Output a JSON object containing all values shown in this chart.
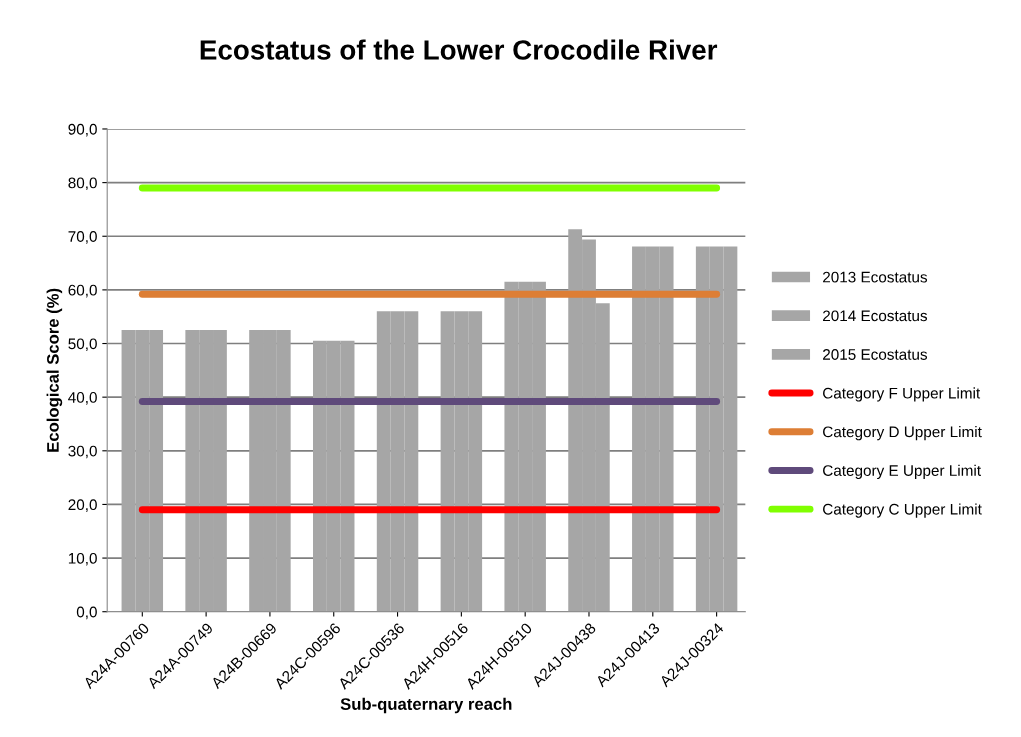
{
  "chart_data": {
    "type": "bar",
    "title": "Ecostatus of the Lower Crocodile River",
    "xlabel": "Sub-quaternary reach",
    "ylabel": "Ecological Score (%)",
    "categories": [
      "A24A-00760",
      "A24A-00749",
      "A24B-00669",
      "A24C-00596",
      "A24C-00536",
      "A24H-00516",
      "A24H-00510",
      "A24J-00438",
      "A24J-00413",
      "A24J-00324"
    ],
    "series": [
      {
        "name": "2013 Ecostatus",
        "color": "#a6a6a6",
        "values": [
          52.5,
          52.5,
          52.5,
          50.5,
          56,
          56,
          61.5,
          71.3,
          68.1,
          68.1
        ]
      },
      {
        "name": "2014 Ecostatus",
        "color": "#a6a6a6",
        "values": [
          52.5,
          52.5,
          52.5,
          50.5,
          56,
          56,
          61.5,
          69.4,
          68.1,
          68.1
        ]
      },
      {
        "name": "2015 Ecostatus",
        "color": "#a6a6a6",
        "values": [
          52.5,
          52.5,
          52.5,
          50.5,
          56,
          56,
          61.5,
          57.5,
          68.1,
          68.1
        ]
      },
      {
        "name": "Category F Upper Limit",
        "type": "line",
        "color": "#ff0000",
        "values": [
          19,
          19,
          19,
          19,
          19,
          19,
          19,
          19,
          19,
          19
        ]
      },
      {
        "name": "Category D Upper Limit",
        "type": "line",
        "color": "#dd7e35",
        "values": [
          59.2,
          59.2,
          59.2,
          59.2,
          59.2,
          59.2,
          59.2,
          59.2,
          59.2,
          59.2
        ]
      },
      {
        "name": "Category E Upper Limit",
        "type": "line",
        "color": "#5f4a7b",
        "values": [
          39.2,
          39.2,
          39.2,
          39.2,
          39.2,
          39.2,
          39.2,
          39.2,
          39.2,
          39.2
        ]
      },
      {
        "name": "Category C Upper Limit",
        "type": "line",
        "color": "#80ff00",
        "values": [
          79,
          79,
          79,
          79,
          79,
          79,
          79,
          79,
          79,
          79
        ]
      }
    ],
    "ylim": [
      0,
      90
    ],
    "yticks": [
      {
        "value": 0,
        "label": "0,0"
      },
      {
        "value": 10,
        "label": "10,0"
      },
      {
        "value": 20,
        "label": "20,0"
      },
      {
        "value": 30,
        "label": "30,0"
      },
      {
        "value": 40,
        "label": "40,0"
      },
      {
        "value": 50,
        "label": "50,0"
      },
      {
        "value": 60,
        "label": "60,0"
      },
      {
        "value": 70,
        "label": "70,0"
      },
      {
        "value": 80,
        "label": "80,0"
      },
      {
        "value": 90,
        "label": "90,0"
      }
    ],
    "grid": "y",
    "legend": "right",
    "marker": "none",
    "line_style": "solid"
  }
}
